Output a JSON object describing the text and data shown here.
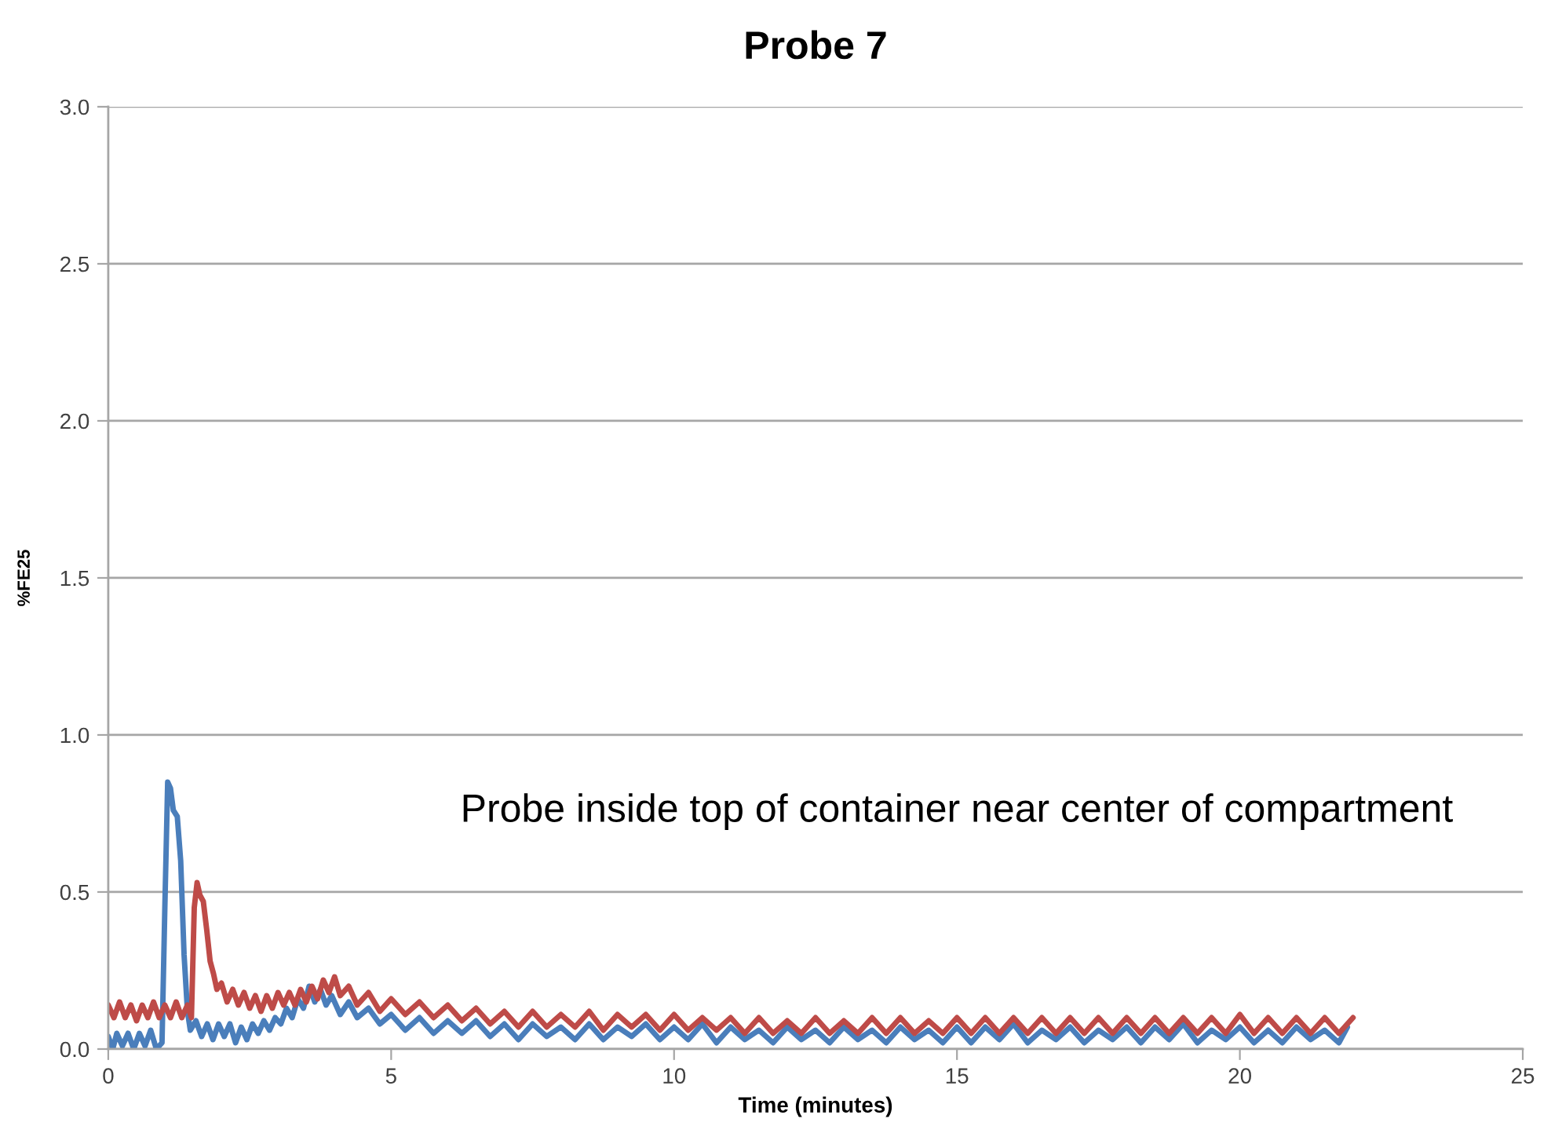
{
  "chart_data": {
    "type": "line",
    "title": "Probe 7",
    "xlabel": "Time (minutes)",
    "ylabel": "%FE25",
    "annotations": [
      "Probe inside top of container near center of compartment"
    ],
    "xlim": [
      0,
      25
    ],
    "xticks": [
      0,
      5,
      10,
      15,
      20,
      25
    ],
    "ylim": [
      0,
      3.0
    ],
    "yticks": [
      {
        "value": 0,
        "label": "0.0"
      },
      0.5,
      {
        "value": 1,
        "label": "1.0"
      },
      1.5,
      {
        "value": 2,
        "label": "2.0"
      },
      2.5,
      {
        "value": 3,
        "label": "3.0"
      }
    ],
    "grid": "y",
    "series": [
      {
        "color": "#4a7ebb",
        "x": [
          0.0,
          0.08,
          0.15,
          0.25,
          0.35,
          0.45,
          0.55,
          0.65,
          0.75,
          0.85,
          0.95,
          1.0,
          1.05,
          1.1,
          1.15,
          1.22,
          1.28,
          1.34,
          1.4,
          1.45,
          1.55,
          1.65,
          1.75,
          1.85,
          1.95,
          2.05,
          2.15,
          2.25,
          2.35,
          2.45,
          2.55,
          2.65,
          2.75,
          2.85,
          2.95,
          3.05,
          3.15,
          3.25,
          3.35,
          3.45,
          3.55,
          3.65,
          3.75,
          3.85,
          3.95,
          4.1,
          4.25,
          4.4,
          4.6,
          4.8,
          5.0,
          5.25,
          5.5,
          5.75,
          6.0,
          6.25,
          6.5,
          6.75,
          7.0,
          7.25,
          7.5,
          7.75,
          8.0,
          8.25,
          8.5,
          8.75,
          9.0,
          9.25,
          9.5,
          9.75,
          10.0,
          10.25,
          10.5,
          10.75,
          11.0,
          11.25,
          11.5,
          11.75,
          12.0,
          12.25,
          12.5,
          12.75,
          13.0,
          13.25,
          13.5,
          13.75,
          14.0,
          14.25,
          14.5,
          14.75,
          15.0,
          15.25,
          15.5,
          15.75,
          16.0,
          16.25,
          16.5,
          16.75,
          17.0,
          17.25,
          17.5,
          17.75,
          18.0,
          18.25,
          18.5,
          18.75,
          19.0,
          19.25,
          19.5,
          19.75,
          20.0,
          20.25,
          20.5,
          20.75,
          21.0,
          21.25,
          21.5,
          21.75,
          21.9
        ],
        "values": [
          0.04,
          0.0,
          0.05,
          0.01,
          0.05,
          0.0,
          0.05,
          0.01,
          0.06,
          0.0,
          0.02,
          0.45,
          0.85,
          0.83,
          0.76,
          0.74,
          0.6,
          0.3,
          0.12,
          0.06,
          0.09,
          0.04,
          0.08,
          0.03,
          0.08,
          0.04,
          0.08,
          0.02,
          0.07,
          0.03,
          0.08,
          0.05,
          0.09,
          0.06,
          0.1,
          0.08,
          0.13,
          0.1,
          0.16,
          0.13,
          0.2,
          0.15,
          0.19,
          0.14,
          0.17,
          0.11,
          0.15,
          0.1,
          0.13,
          0.08,
          0.11,
          0.06,
          0.1,
          0.05,
          0.09,
          0.05,
          0.09,
          0.04,
          0.08,
          0.03,
          0.08,
          0.04,
          0.07,
          0.03,
          0.08,
          0.03,
          0.07,
          0.04,
          0.08,
          0.03,
          0.07,
          0.03,
          0.08,
          0.02,
          0.07,
          0.03,
          0.06,
          0.02,
          0.07,
          0.03,
          0.06,
          0.02,
          0.07,
          0.03,
          0.06,
          0.02,
          0.07,
          0.03,
          0.06,
          0.02,
          0.07,
          0.02,
          0.07,
          0.03,
          0.08,
          0.02,
          0.06,
          0.03,
          0.07,
          0.02,
          0.06,
          0.03,
          0.07,
          0.02,
          0.07,
          0.03,
          0.08,
          0.02,
          0.06,
          0.03,
          0.07,
          0.02,
          0.06,
          0.02,
          0.07,
          0.03,
          0.06,
          0.02,
          0.07
        ]
      },
      {
        "color": "#be4b48",
        "x": [
          0.0,
          0.1,
          0.2,
          0.3,
          0.4,
          0.5,
          0.6,
          0.7,
          0.8,
          0.9,
          1.0,
          1.1,
          1.2,
          1.3,
          1.4,
          1.47,
          1.52,
          1.57,
          1.62,
          1.68,
          1.74,
          1.8,
          1.86,
          1.92,
          2.0,
          2.1,
          2.2,
          2.3,
          2.4,
          2.5,
          2.6,
          2.7,
          2.8,
          2.9,
          3.0,
          3.1,
          3.2,
          3.3,
          3.4,
          3.5,
          3.6,
          3.7,
          3.8,
          3.9,
          4.0,
          4.1,
          4.25,
          4.4,
          4.6,
          4.8,
          5.0,
          5.25,
          5.5,
          5.75,
          6.0,
          6.25,
          6.5,
          6.75,
          7.0,
          7.25,
          7.5,
          7.75,
          8.0,
          8.25,
          8.5,
          8.75,
          9.0,
          9.25,
          9.5,
          9.75,
          10.0,
          10.25,
          10.5,
          10.75,
          11.0,
          11.25,
          11.5,
          11.75,
          12.0,
          12.25,
          12.5,
          12.75,
          13.0,
          13.25,
          13.5,
          13.75,
          14.0,
          14.25,
          14.5,
          14.75,
          15.0,
          15.25,
          15.5,
          15.75,
          16.0,
          16.25,
          16.5,
          16.75,
          17.0,
          17.25,
          17.5,
          17.75,
          18.0,
          18.25,
          18.5,
          18.75,
          19.0,
          19.25,
          19.5,
          19.75,
          20.0,
          20.25,
          20.5,
          20.75,
          21.0,
          21.25,
          21.5,
          21.75,
          22.0
        ],
        "values": [
          0.14,
          0.1,
          0.15,
          0.1,
          0.14,
          0.09,
          0.14,
          0.1,
          0.15,
          0.1,
          0.14,
          0.1,
          0.15,
          0.1,
          0.14,
          0.1,
          0.45,
          0.53,
          0.49,
          0.47,
          0.38,
          0.28,
          0.24,
          0.19,
          0.21,
          0.15,
          0.19,
          0.14,
          0.18,
          0.13,
          0.17,
          0.12,
          0.17,
          0.13,
          0.18,
          0.14,
          0.18,
          0.14,
          0.19,
          0.15,
          0.2,
          0.16,
          0.22,
          0.18,
          0.23,
          0.17,
          0.2,
          0.14,
          0.18,
          0.12,
          0.16,
          0.11,
          0.15,
          0.1,
          0.14,
          0.09,
          0.13,
          0.08,
          0.12,
          0.07,
          0.12,
          0.07,
          0.11,
          0.07,
          0.12,
          0.06,
          0.11,
          0.07,
          0.11,
          0.06,
          0.11,
          0.06,
          0.1,
          0.06,
          0.1,
          0.05,
          0.1,
          0.05,
          0.09,
          0.05,
          0.1,
          0.05,
          0.09,
          0.05,
          0.1,
          0.05,
          0.1,
          0.05,
          0.09,
          0.05,
          0.1,
          0.05,
          0.1,
          0.05,
          0.1,
          0.05,
          0.1,
          0.05,
          0.1,
          0.05,
          0.1,
          0.05,
          0.1,
          0.05,
          0.1,
          0.05,
          0.1,
          0.05,
          0.1,
          0.05,
          0.11,
          0.05,
          0.1,
          0.05,
          0.1,
          0.05,
          0.1,
          0.05,
          0.1
        ]
      }
    ]
  }
}
